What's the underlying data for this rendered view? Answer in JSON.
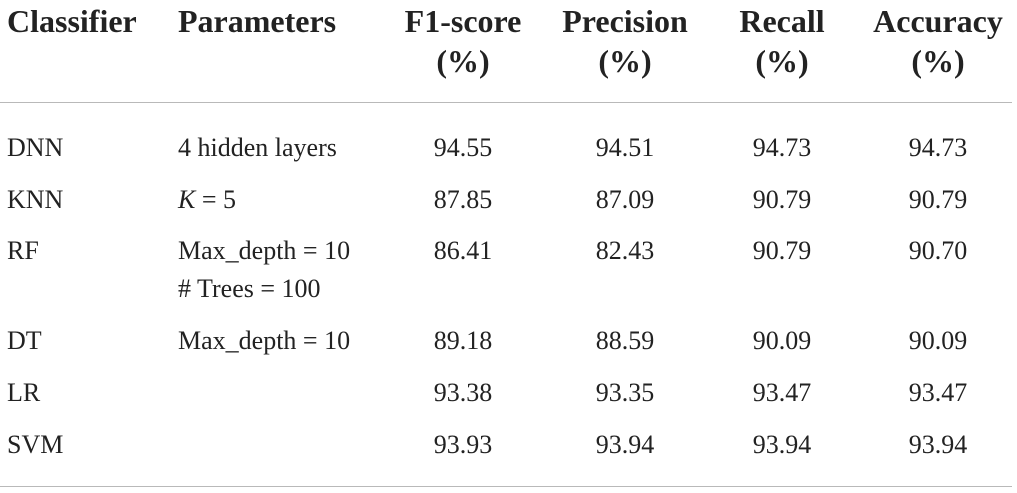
{
  "headers": {
    "classifier": "Classifier",
    "parameters": "Parameters",
    "f1": [
      "F1-score",
      "(%)"
    ],
    "precision": [
      "Precision",
      "(%)"
    ],
    "recall": [
      "Recall",
      "(%)"
    ],
    "accuracy": [
      "Accuracy",
      "(%)"
    ]
  },
  "rows": [
    {
      "classifier": "DNN",
      "parameters": [
        "4 hidden layers"
      ],
      "f1": "94.55",
      "precision": "94.51",
      "recall": "94.73",
      "accuracy": "94.73"
    },
    {
      "classifier": "KNN",
      "parameters_k_var": "K",
      "parameters_k_rest": " = 5",
      "f1": "87.85",
      "precision": "87.09",
      "recall": "90.79",
      "accuracy": "90.79"
    },
    {
      "classifier": "RF",
      "parameters": [
        "Max_depth = 10",
        "# Trees = 100"
      ],
      "f1": "86.41",
      "precision": "82.43",
      "recall": "90.79",
      "accuracy": "90.70"
    },
    {
      "classifier": "DT",
      "parameters": [
        "Max_depth = 10"
      ],
      "f1": "89.18",
      "precision": "88.59",
      "recall": "90.09",
      "accuracy": "90.09"
    },
    {
      "classifier": "LR",
      "parameters": [
        ""
      ],
      "f1": "93.38",
      "precision": "93.35",
      "recall": "93.47",
      "accuracy": "93.47"
    },
    {
      "classifier": "SVM",
      "parameters": [
        ""
      ],
      "f1": "93.93",
      "precision": "93.94",
      "recall": "93.94",
      "accuracy": "93.94"
    }
  ]
}
